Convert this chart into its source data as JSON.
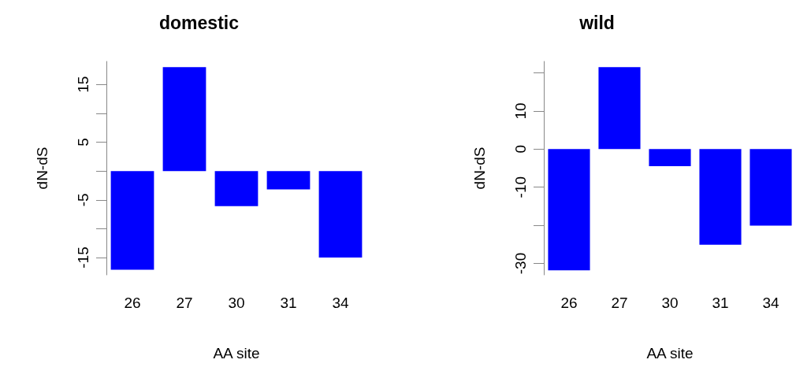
{
  "chart_data": [
    {
      "type": "bar",
      "title": "domestic",
      "xlabel": "AA site",
      "ylabel": "dN-dS",
      "categories": [
        "26",
        "27",
        "30",
        "31",
        "34"
      ],
      "series": [
        {
          "color": "#0000ff",
          "values": [
            -17.1,
            18.0,
            -6.1,
            -3.2,
            -15.0
          ]
        }
      ],
      "ylim": [
        -18,
        19
      ],
      "yticks": [
        -15,
        {
          "value": -10,
          "label": null
        },
        -5,
        {
          "value": 0,
          "label": null
        },
        5,
        {
          "value": 10,
          "label": null
        },
        15
      ],
      "grid": false
    },
    {
      "type": "bar",
      "title": "wild",
      "xlabel": "AA site",
      "ylabel": "dN-dS",
      "categories": [
        "26",
        "27",
        "30",
        "31",
        "34"
      ],
      "series": [
        {
          "color": "#0000ff",
          "values": [
            -31.8,
            21.5,
            -4.5,
            -25.1,
            -20.1
          ]
        }
      ],
      "ylim": [
        -33,
        23
      ],
      "yticks": [
        -30,
        {
          "value": -20,
          "label": null
        },
        -10,
        0,
        10,
        {
          "value": 20,
          "label": null
        }
      ],
      "grid": false
    }
  ]
}
